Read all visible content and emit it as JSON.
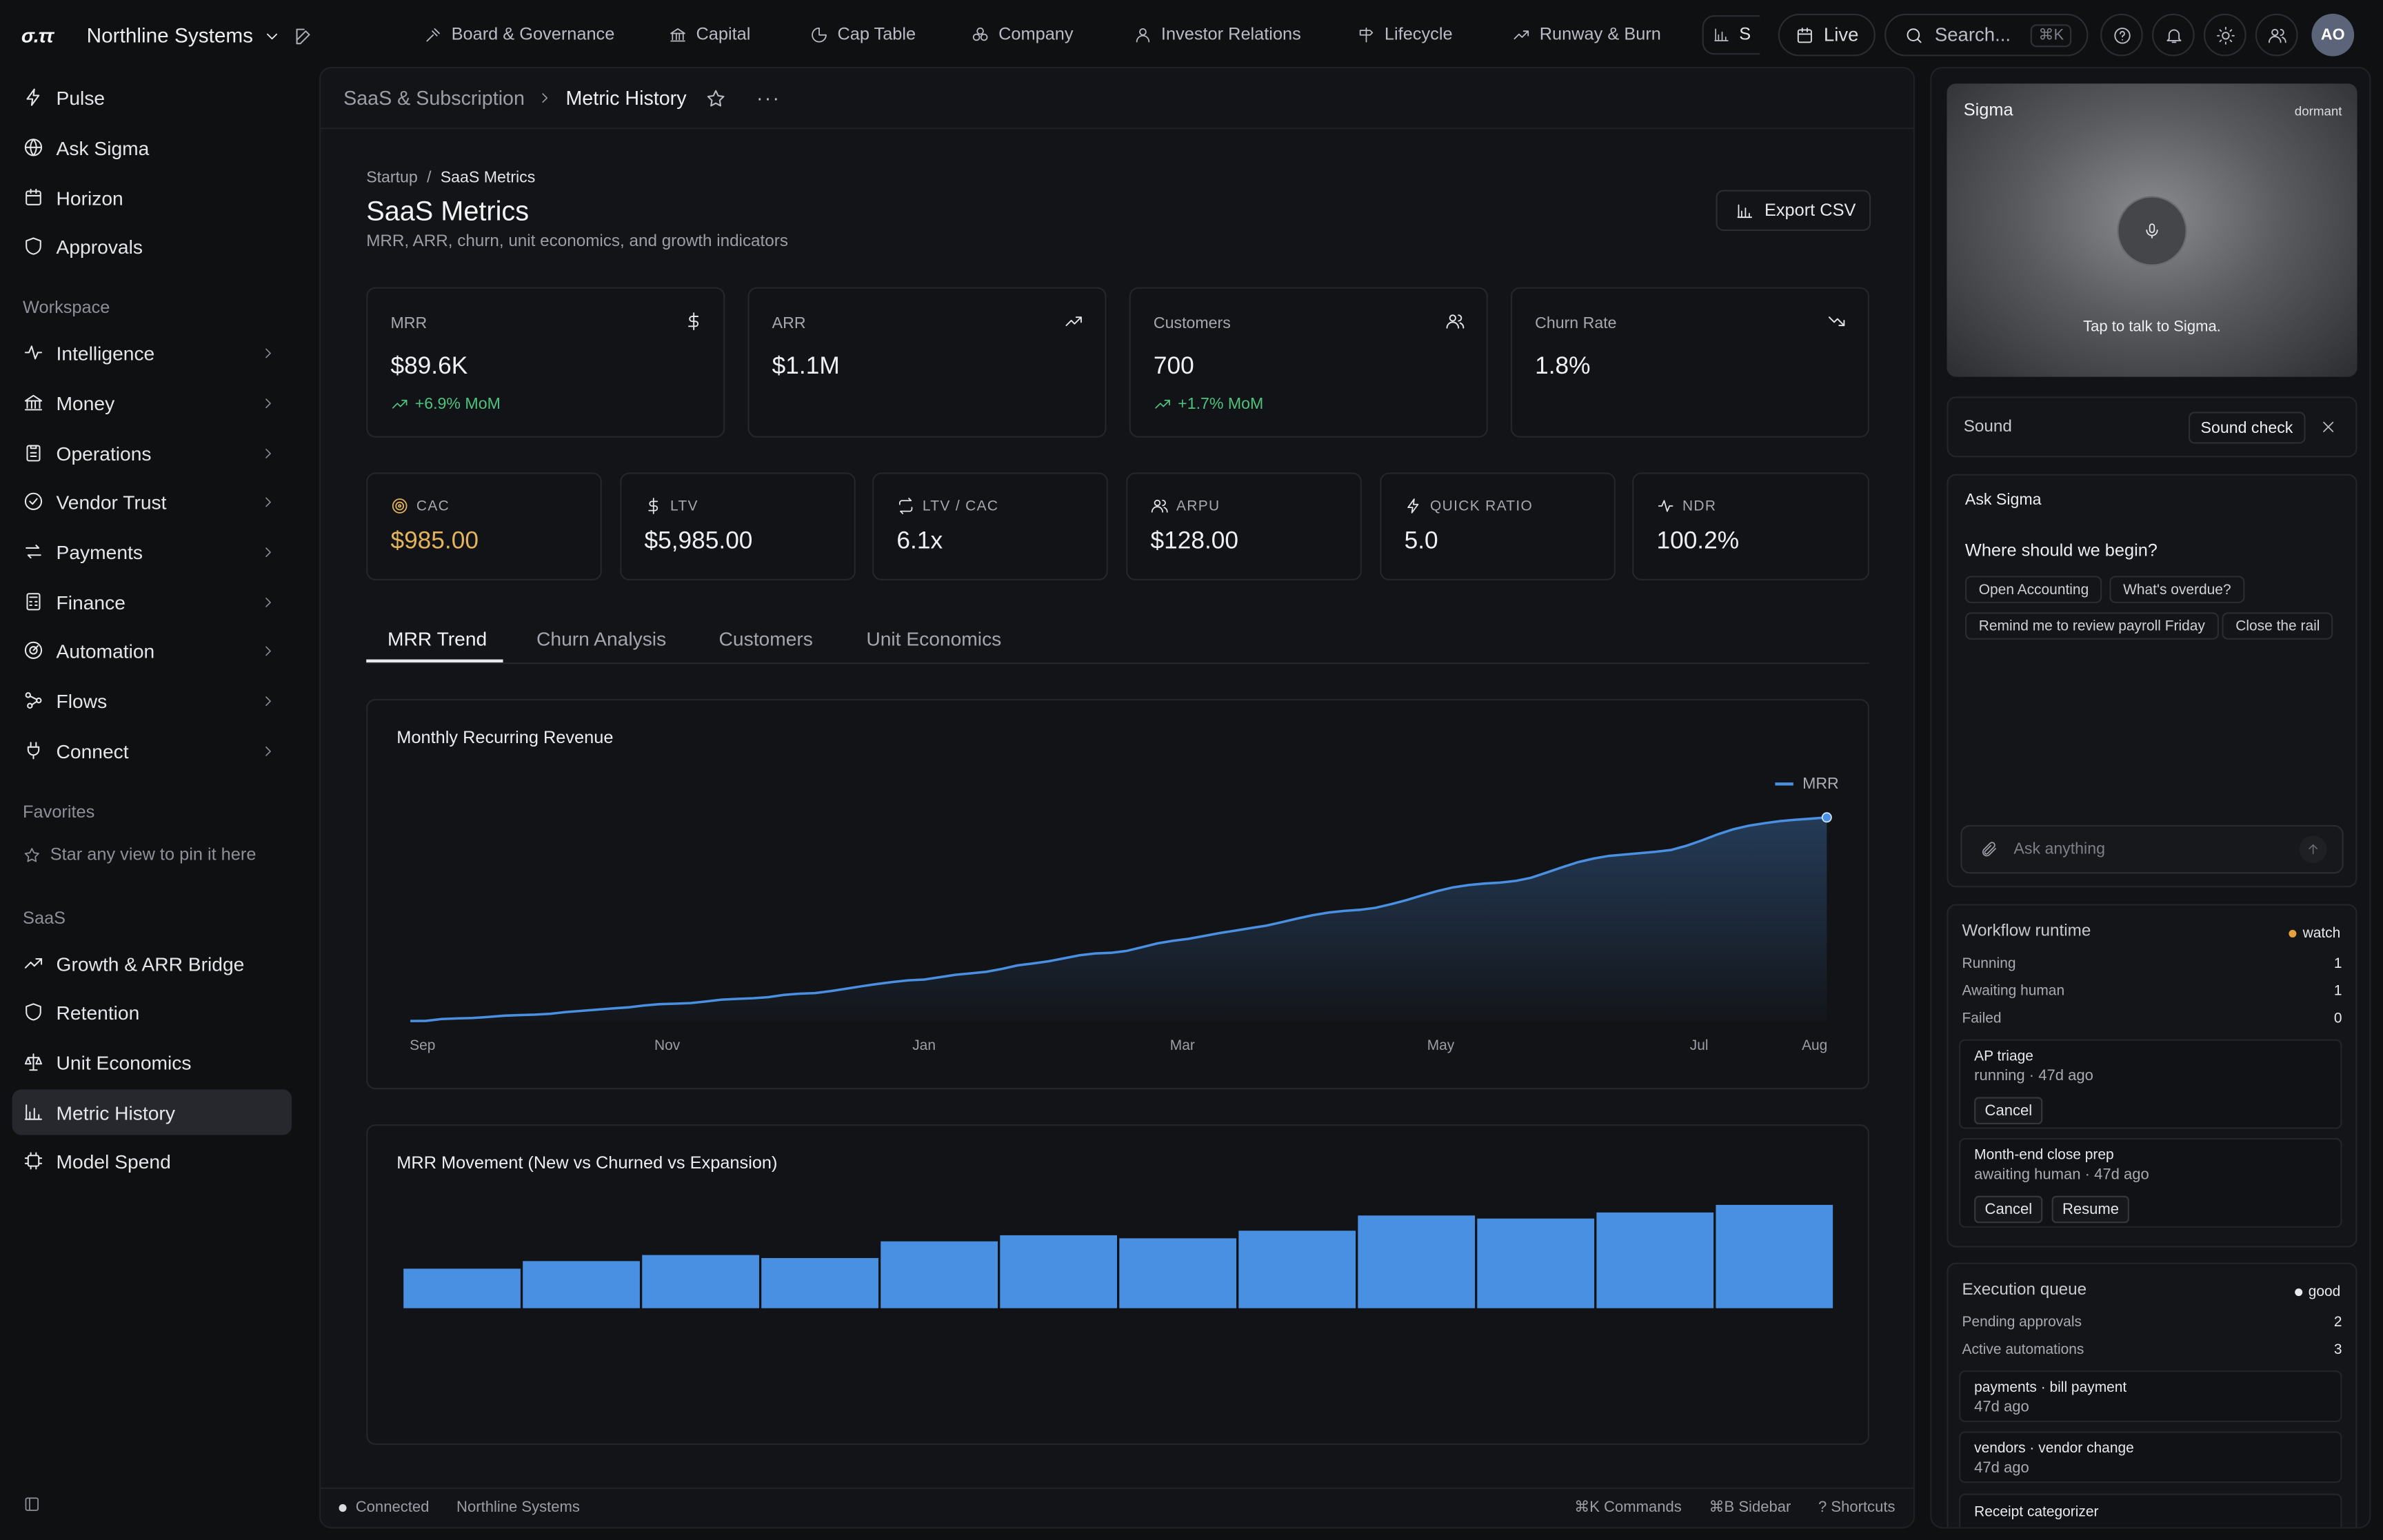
{
  "topbar": {
    "logo": "σ.ττ",
    "org": "Northline Systems",
    "tabs": [
      {
        "label": "Board & Governance",
        "icon": "gavel-icon"
      },
      {
        "label": "Capital",
        "icon": "bank-icon"
      },
      {
        "label": "Cap Table",
        "icon": "pie-icon"
      },
      {
        "label": "Company",
        "icon": "cluster-icon"
      },
      {
        "label": "Investor Relations",
        "icon": "person-icon"
      },
      {
        "label": "Lifecycle",
        "icon": "signpost-icon"
      },
      {
        "label": "Runway & Burn",
        "icon": "trend-up-icon"
      },
      {
        "label": "S",
        "icon": "bar-chart-icon"
      }
    ],
    "live_label": "Live",
    "search_placeholder": "Search...",
    "search_shortcut": "⌘K",
    "avatar_initials": "AO"
  },
  "sidebar": {
    "top": [
      {
        "label": "Pulse",
        "icon": "bolt-icon"
      },
      {
        "label": "Ask Sigma",
        "icon": "globe-icon"
      },
      {
        "label": "Horizon",
        "icon": "calendar-icon"
      },
      {
        "label": "Approvals",
        "icon": "shield-icon"
      }
    ],
    "workspace_heading": "Workspace",
    "workspace": [
      {
        "label": "Intelligence",
        "icon": "pulse-icon"
      },
      {
        "label": "Money",
        "icon": "bank-icon"
      },
      {
        "label": "Operations",
        "icon": "clipboard-icon"
      },
      {
        "label": "Vendor Trust",
        "icon": "check-circle-icon"
      },
      {
        "label": "Payments",
        "icon": "swap-icon"
      },
      {
        "label": "Finance",
        "icon": "calculator-icon"
      },
      {
        "label": "Automation",
        "icon": "gauge-icon"
      },
      {
        "label": "Flows",
        "icon": "flow-icon"
      },
      {
        "label": "Connect",
        "icon": "plug-icon"
      }
    ],
    "favorites_heading": "Favorites",
    "favorites_empty": "Star any view to pin it here",
    "saas_heading": "SaaS",
    "saas": [
      {
        "label": "Growth & ARR Bridge",
        "icon": "trend-up-icon"
      },
      {
        "label": "Retention",
        "icon": "shield-icon"
      },
      {
        "label": "Unit Economics",
        "icon": "scale-icon"
      },
      {
        "label": "Metric History",
        "icon": "bar-chart-icon"
      },
      {
        "label": "Model Spend",
        "icon": "chip-icon"
      }
    ]
  },
  "breadcrumb": {
    "parent": "SaaS & Subscription",
    "current": "Metric History"
  },
  "page": {
    "path_root": "Startup",
    "path_leaf": "SaaS Metrics",
    "title": "SaaS Metrics",
    "subtitle": "MRR, ARR, churn, unit economics, and growth indicators",
    "export_label": "Export CSV"
  },
  "kpis": [
    {
      "label": "MRR",
      "value": "$89.6K",
      "delta": "+6.9% MoM",
      "icon": "dollar-icon"
    },
    {
      "label": "ARR",
      "value": "$1.1M",
      "delta": "",
      "icon": "trend-up-icon"
    },
    {
      "label": "Customers",
      "value": "700",
      "delta": "+1.7% MoM",
      "icon": "users-icon"
    },
    {
      "label": "Churn Rate",
      "value": "1.8%",
      "delta": "",
      "icon": "trend-down-icon"
    }
  ],
  "stats": [
    {
      "label": "CAC",
      "value": "$985.00",
      "icon": "target-icon",
      "color": "#e3b45a"
    },
    {
      "label": "LTV",
      "value": "$5,985.00",
      "icon": "dollar-icon",
      "color": "#eef0f3"
    },
    {
      "label": "LTV / CAC",
      "value": "6.1x",
      "icon": "repeat-icon",
      "color": "#eef0f3"
    },
    {
      "label": "ARPU",
      "value": "$128.00",
      "icon": "users-icon",
      "color": "#eef0f3"
    },
    {
      "label": "Quick Ratio",
      "value": "5.0",
      "icon": "bolt-icon",
      "color": "#eef0f3"
    },
    {
      "label": "NDR",
      "value": "100.2%",
      "icon": "pulse-icon",
      "color": "#eef0f3"
    }
  ],
  "tabs": [
    "MRR Trend",
    "Churn Analysis",
    "Customers",
    "Unit Economics"
  ],
  "chart_data": [
    {
      "type": "area",
      "title": "Monthly Recurring Revenue",
      "legend": "MRR",
      "legend_position": "top-right",
      "grid": false,
      "color": "#4a90e2",
      "x_ticks": [
        "Sep",
        "Nov",
        "Jan",
        "Mar",
        "May",
        "Jul",
        "Aug"
      ],
      "series": [
        {
          "name": "MRR",
          "values": [
            0,
            0.1,
            1.0,
            1.3,
            1.5,
            2.0,
            2.6,
            2.9,
            3.1,
            3.6,
            4.4,
            5.0,
            5.6,
            6.2,
            6.7,
            7.6,
            8.3,
            8.5,
            8.8,
            9.6,
            10.5,
            10.9,
            11.2,
            11.7,
            12.8,
            13.4,
            13.7,
            14.7,
            15.9,
            17.1,
            18.2,
            19.2,
            20.0,
            20.4,
            21.5,
            22.7,
            23.4,
            24.2,
            25.6,
            27.3,
            28.3,
            29.3,
            30.8,
            32.3,
            33.2,
            33.5,
            34.4,
            36.3,
            38.1,
            39.4,
            40.4,
            41.8,
            43.2,
            44.4,
            45.7,
            46.9,
            48.6,
            50.4,
            52.0,
            53.3,
            54.1,
            54.6,
            55.6,
            57.4,
            59.4,
            61.7,
            63.9,
            65.7,
            66.8,
            67.5,
            68.0,
            68.8,
            70.4,
            72.9,
            75.5,
            78.0,
            79.8,
            81.1,
            81.8,
            82.5,
            83.1,
            84.0,
            86.1,
            88.8,
            91.7,
            94.2,
            96.0,
            97.2,
            98.2,
            98.9,
            99.4,
            100
          ]
        }
      ]
    },
    {
      "type": "bar",
      "title": "MRR Movement (New vs Churned vs Expansion)",
      "color": "#4a90e2",
      "grid": false,
      "values": [
        26,
        31,
        35,
        33,
        44,
        48,
        46,
        51,
        61,
        59,
        63,
        68
      ]
    }
  ],
  "sigma": {
    "title": "Sigma",
    "state": "dormant",
    "hint": "Tap to talk to Sigma.",
    "sound_label": "Sound",
    "sound_check": "Sound check"
  },
  "ask": {
    "title": "Ask Sigma",
    "prompt": "Where should we begin?",
    "chips": [
      "Open Accounting",
      "What's overdue?",
      "Remind me to review payroll Friday",
      "Close the rail"
    ],
    "input_placeholder": "Ask anything"
  },
  "workflow": {
    "title": "Workflow runtime",
    "status": "watch",
    "status_color": "#e3a33c",
    "rows": [
      {
        "k": "Running",
        "v": "1"
      },
      {
        "k": "Awaiting human",
        "v": "1"
      },
      {
        "k": "Failed",
        "v": "0"
      }
    ],
    "jobs": [
      {
        "name": "AP triage",
        "meta": "running · 47d ago",
        "actions": [
          "Cancel"
        ]
      },
      {
        "name": "Month-end close prep",
        "meta": "awaiting human · 47d ago",
        "actions": [
          "Cancel",
          "Resume"
        ]
      }
    ]
  },
  "queue": {
    "title": "Execution queue",
    "status": "good",
    "status_color": "#e8e9ec",
    "rows": [
      {
        "k": "Pending approvals",
        "v": "2"
      },
      {
        "k": "Active automations",
        "v": "3"
      }
    ],
    "items": [
      {
        "name": "payments · bill payment",
        "meta": "47d ago"
      },
      {
        "name": "vendors · vendor change",
        "meta": "47d ago"
      },
      {
        "name": "Receipt categorizer",
        "meta": ""
      }
    ]
  },
  "statusbar": {
    "connection": "Connected",
    "org": "Northline Systems",
    "commands": "⌘K Commands",
    "sidebar": "⌘B Sidebar",
    "shortcuts": "? Shortcuts"
  }
}
